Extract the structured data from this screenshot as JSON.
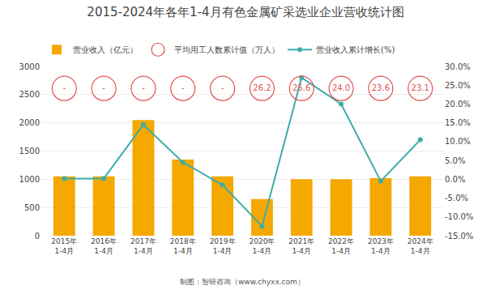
{
  "chart_data": {
    "type": "bar",
    "title": "2015-2024年各年1-4月有色金属矿采选业企业营收统计图",
    "categories": [
      "2015年\n1-4月",
      "2016年\n1-4月",
      "2017年\n1-4月",
      "2018年\n1-4月",
      "2019年\n1-4月",
      "2020年\n1-4月",
      "2021年\n1-4月",
      "2022年\n1-4月",
      "2023年\n1-4月",
      "2024年\n1-4月"
    ],
    "series": [
      {
        "name": "营业收入（亿元）",
        "type": "bar",
        "color": "#F5A800",
        "values": [
          1050,
          1050,
          2050,
          1350,
          1050,
          650,
          1000,
          1000,
          1020,
          1050
        ]
      },
      {
        "name": "平均用工人数累计值（万人）",
        "type": "scatter",
        "marker": "circle-open",
        "color": "#E05252",
        "data_labels": true,
        "values": [
          null,
          null,
          null,
          null,
          null,
          26.2,
          25.6,
          24.0,
          23.6,
          23.1
        ],
        "value_labels": [
          "-",
          "-",
          "-",
          "-",
          "-",
          "26.2",
          "25.6",
          "24.0",
          "23.6",
          "23.1"
        ]
      },
      {
        "name": "营业收入累计增长(%)",
        "type": "line",
        "axis": "y2",
        "color": "#3DADA8",
        "marker": "circle",
        "line_style": "solid",
        "values": [
          0.2,
          0.2,
          14.5,
          4.5,
          -1.5,
          -12.5,
          27.0,
          20.0,
          -0.5,
          10.5
        ]
      }
    ],
    "ylim": [
      0,
      3000
    ],
    "yticks": [
      0,
      500,
      1000,
      1500,
      2000,
      2500,
      3000
    ],
    "y2lim": [
      -15.0,
      30.0
    ],
    "y2ticks": [
      {
        "value": -15.0,
        "label": "-15.0%"
      },
      {
        "value": -10.0,
        "label": "-10.0%"
      },
      {
        "value": -5.0,
        "label": "-5.0%"
      },
      {
        "value": 0.0,
        "label": "0.0%"
      },
      {
        "value": 5.0,
        "label": "5.0%"
      },
      {
        "value": 10.0,
        "label": "10.0%"
      },
      {
        "value": 15.0,
        "label": "15.0%"
      },
      {
        "value": 20.0,
        "label": "20.0%"
      },
      {
        "value": 25.0,
        "label": "25.0%"
      },
      {
        "value": 30.0,
        "label": "30.0%"
      }
    ],
    "grid": true,
    "legend": "top",
    "annotations": [
      "制图：智研咨询（www.chyxx.com）"
    ]
  }
}
